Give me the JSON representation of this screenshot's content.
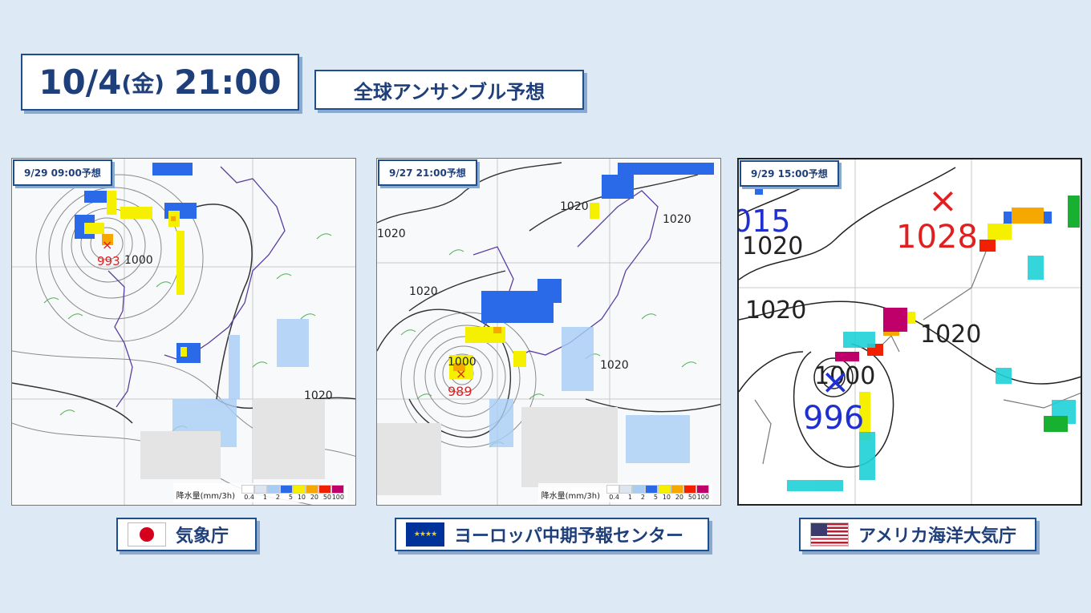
{
  "header": {
    "date": "10/4",
    "weekday": "(金)",
    "time": "21:00",
    "subtitle": "全球アンサンブル予想"
  },
  "panels": [
    {
      "issued": "9/29 09:00予想",
      "model": "気象庁",
      "flag": "japan-flag",
      "low_pressure": "993",
      "isobars": [
        "1000",
        "1020"
      ],
      "legend": {
        "title": "降水量(mm/3h)",
        "ticks": [
          "0.4",
          "1",
          "2",
          "5",
          "10",
          "20",
          "50",
          "100"
        ]
      }
    },
    {
      "issued": "9/27 21:00予想",
      "model": "ヨーロッパ中期予報センター",
      "flag": "eu-flag",
      "low_pressure": "989",
      "isobars": [
        "1000",
        "1020",
        "1020",
        "1020",
        "1020",
        "1020"
      ],
      "legend": {
        "title": "降水量(mm/3h)",
        "ticks": [
          "0.4",
          "1",
          "2",
          "5",
          "10",
          "20",
          "50",
          "100"
        ]
      }
    },
    {
      "issued": "9/29 15:00予想",
      "model": "アメリカ海洋大気庁",
      "flag": "us-flag",
      "low_pressure": "996",
      "high_pressure": "1028",
      "isobars": [
        "015",
        "1020",
        "1020",
        "1020",
        "1000"
      ]
    }
  ],
  "colors": {
    "accent": "#1f4e8c",
    "low_mark": "#e02020",
    "low_mark_noaa": "#2030d0",
    "legend_scale": [
      "#ffffff",
      "#dde6f0",
      "#a8cdf5",
      "#2a6ae8",
      "#f4f000",
      "#f7a800",
      "#f02000",
      "#c0006a"
    ]
  }
}
